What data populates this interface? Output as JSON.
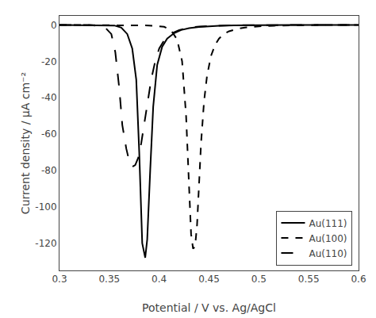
{
  "chart_data": {
    "type": "line",
    "xlabel": "Potential / V vs. Ag/AgCl",
    "ylabel": "Current density / μA cm⁻²",
    "xlim": [
      0.3,
      0.6
    ],
    "ylim": [
      -135,
      5
    ],
    "xticks": [
      0.3,
      0.35,
      0.4,
      0.45,
      0.5,
      0.55,
      0.6
    ],
    "yticks": [
      0,
      -20,
      -40,
      -60,
      -80,
      -100,
      -120
    ],
    "grid": false,
    "legend": "lower right",
    "series": [
      {
        "name": "Au(111)",
        "color": "#000000",
        "line_style": "solid",
        "x": [
          0.3,
          0.34,
          0.355,
          0.362,
          0.368,
          0.373,
          0.377,
          0.38,
          0.383,
          0.386,
          0.388,
          0.391,
          0.394,
          0.398,
          0.403,
          0.408,
          0.415,
          0.422,
          0.43,
          0.44,
          0.45,
          0.46,
          0.475,
          0.49,
          0.51,
          0.53,
          0.56,
          0.6
        ],
        "values": [
          0.0,
          0.0,
          -0.3,
          -1.5,
          -5.0,
          -13.0,
          -30.0,
          -70.0,
          -120.0,
          -128.0,
          -118.0,
          -80.0,
          -45.0,
          -22.0,
          -12.0,
          -7.5,
          -4.5,
          -2.8,
          -1.8,
          -1.1,
          -0.7,
          -0.4,
          -0.2,
          -0.1,
          -0.05,
          -0.02,
          -0.01,
          0.0
        ]
      },
      {
        "name": "Au(100)",
        "color": "#000000",
        "line_style": "dash",
        "x": [
          0.3,
          0.34,
          0.37,
          0.39,
          0.405,
          0.412,
          0.418,
          0.423,
          0.427,
          0.43,
          0.432,
          0.434,
          0.436,
          0.438,
          0.44,
          0.442,
          0.445,
          0.448,
          0.452,
          0.456,
          0.46,
          0.465,
          0.47,
          0.478,
          0.486,
          0.495,
          0.505,
          0.515,
          0.53,
          0.545,
          0.56,
          0.58,
          0.6
        ],
        "values": [
          0.0,
          0.0,
          0.0,
          -0.3,
          -1.0,
          -3.0,
          -8.0,
          -20.0,
          -50.0,
          -90.0,
          -115.0,
          -123.0,
          -122.0,
          -110.0,
          -88.0,
          -65.0,
          -42.0,
          -28.0,
          -17.0,
          -11.0,
          -7.5,
          -5.0,
          -3.5,
          -2.2,
          -1.4,
          -0.9,
          -0.6,
          -0.4,
          -0.2,
          -0.1,
          -0.06,
          -0.03,
          0.0
        ]
      },
      {
        "name": "Au(110)",
        "color": "#000000",
        "line_style": "longdash",
        "x": [
          0.3,
          0.33,
          0.345,
          0.352,
          0.356,
          0.36,
          0.363,
          0.367,
          0.37,
          0.373,
          0.376,
          0.379,
          0.382,
          0.385,
          0.388,
          0.392,
          0.396,
          0.4,
          0.406,
          0.413,
          0.42,
          0.43,
          0.44,
          0.455,
          0.47,
          0.49,
          0.52,
          0.56,
          0.6
        ],
        "values": [
          0.0,
          0.0,
          -1.0,
          -5.0,
          -15.0,
          -35.0,
          -55.0,
          -68.0,
          -75.0,
          -78.0,
          -77.0,
          -73.0,
          -65.0,
          -55.0,
          -43.0,
          -30.0,
          -20.0,
          -13.0,
          -7.5,
          -4.5,
          -2.8,
          -1.5,
          -0.9,
          -0.4,
          -0.2,
          -0.1,
          -0.04,
          -0.01,
          0.0
        ]
      }
    ]
  }
}
